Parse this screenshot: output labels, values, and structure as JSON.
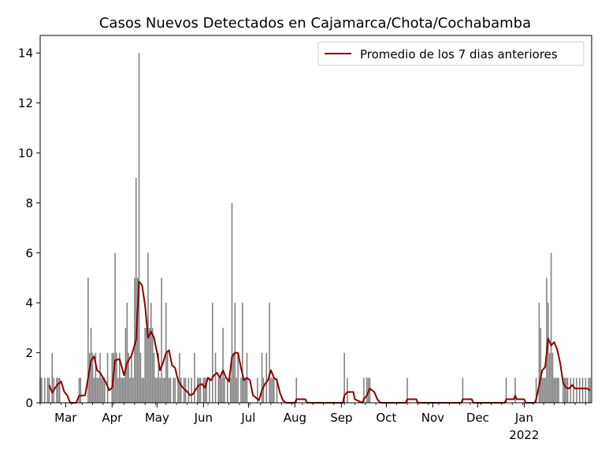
{
  "chart_data": {
    "type": "bar",
    "title": "Casos Nuevos Detectados en Cajamarca/Chota/Cochabamba",
    "xlabel": "",
    "ylabel": "",
    "ylim": [
      0,
      14.7
    ],
    "y_ticks": [
      0,
      2,
      4,
      6,
      8,
      10,
      12,
      14
    ],
    "x_range": [
      "2021-02-12",
      "2022-02-15"
    ],
    "x_ticks": [
      {
        "date": "2021-03-01",
        "label": "Mar",
        "sublabel": ""
      },
      {
        "date": "2021-04-01",
        "label": "Apr",
        "sublabel": ""
      },
      {
        "date": "2021-05-01",
        "label": "May",
        "sublabel": ""
      },
      {
        "date": "2021-06-01",
        "label": "Jun",
        "sublabel": ""
      },
      {
        "date": "2021-07-01",
        "label": "Jul",
        "sublabel": ""
      },
      {
        "date": "2021-08-01",
        "label": "Aug",
        "sublabel": ""
      },
      {
        "date": "2021-09-01",
        "label": "Sep",
        "sublabel": ""
      },
      {
        "date": "2021-10-01",
        "label": "Oct",
        "sublabel": ""
      },
      {
        "date": "2021-11-01",
        "label": "Nov",
        "sublabel": ""
      },
      {
        "date": "2021-12-01",
        "label": "Dec",
        "sublabel": ""
      },
      {
        "date": "2022-01-01",
        "label": "Jan",
        "sublabel": "2022"
      }
    ],
    "legend": {
      "label": "Promedio de los 7 dias anteriores",
      "placement": "top-right"
    },
    "bar_color": "#808080",
    "line_color": "#8b0000",
    "daily_cases": [
      [
        "2021-02-12",
        1
      ],
      [
        "2021-02-13",
        1
      ],
      [
        "2021-02-15",
        1
      ],
      [
        "2021-02-17",
        1
      ],
      [
        "2021-02-18",
        1
      ],
      [
        "2021-02-20",
        2
      ],
      [
        "2021-02-21",
        1
      ],
      [
        "2021-02-23",
        1
      ],
      [
        "2021-02-24",
        1
      ],
      [
        "2021-02-25",
        1
      ],
      [
        "2021-03-10",
        1
      ],
      [
        "2021-03-11",
        1
      ],
      [
        "2021-03-16",
        5
      ],
      [
        "2021-03-17",
        2
      ],
      [
        "2021-03-18",
        3
      ],
      [
        "2021-03-19",
        2
      ],
      [
        "2021-03-20",
        1
      ],
      [
        "2021-03-21",
        2
      ],
      [
        "2021-03-22",
        1
      ],
      [
        "2021-03-23",
        1
      ],
      [
        "2021-03-24",
        2
      ],
      [
        "2021-03-25",
        1
      ],
      [
        "2021-03-26",
        1
      ],
      [
        "2021-03-27",
        1
      ],
      [
        "2021-03-29",
        2
      ],
      [
        "2021-04-01",
        2
      ],
      [
        "2021-04-02",
        2
      ],
      [
        "2021-04-03",
        6
      ],
      [
        "2021-04-04",
        2
      ],
      [
        "2021-04-05",
        1
      ],
      [
        "2021-04-06",
        2
      ],
      [
        "2021-04-07",
        1
      ],
      [
        "2021-04-08",
        1
      ],
      [
        "2021-04-09",
        1
      ],
      [
        "2021-04-10",
        3
      ],
      [
        "2021-04-11",
        4
      ],
      [
        "2021-04-12",
        2
      ],
      [
        "2021-04-13",
        1
      ],
      [
        "2021-04-14",
        2
      ],
      [
        "2021-04-15",
        1
      ],
      [
        "2021-04-16",
        5
      ],
      [
        "2021-04-17",
        9
      ],
      [
        "2021-04-18",
        5
      ],
      [
        "2021-04-19",
        14
      ],
      [
        "2021-04-20",
        2
      ],
      [
        "2021-04-21",
        1
      ],
      [
        "2021-04-22",
        1
      ],
      [
        "2021-04-23",
        3
      ],
      [
        "2021-04-24",
        3
      ],
      [
        "2021-04-25",
        6
      ],
      [
        "2021-04-26",
        3
      ],
      [
        "2021-04-27",
        4
      ],
      [
        "2021-04-28",
        3
      ],
      [
        "2021-04-29",
        2
      ],
      [
        "2021-04-30",
        1
      ],
      [
        "2021-05-01",
        1
      ],
      [
        "2021-05-02",
        2
      ],
      [
        "2021-05-03",
        1
      ],
      [
        "2021-05-04",
        5
      ],
      [
        "2021-05-05",
        1
      ],
      [
        "2021-05-06",
        1
      ],
      [
        "2021-05-07",
        4
      ],
      [
        "2021-05-08",
        2
      ],
      [
        "2021-05-09",
        1
      ],
      [
        "2021-05-10",
        1
      ],
      [
        "2021-05-12",
        1
      ],
      [
        "2021-05-13",
        1
      ],
      [
        "2021-05-15",
        1
      ],
      [
        "2021-05-16",
        2
      ],
      [
        "2021-05-17",
        1
      ],
      [
        "2021-05-19",
        1
      ],
      [
        "2021-05-20",
        1
      ],
      [
        "2021-05-22",
        1
      ],
      [
        "2021-05-24",
        1
      ],
      [
        "2021-05-26",
        2
      ],
      [
        "2021-05-28",
        1
      ],
      [
        "2021-05-29",
        1
      ],
      [
        "2021-05-30",
        1
      ],
      [
        "2021-06-01",
        1
      ],
      [
        "2021-06-02",
        1
      ],
      [
        "2021-06-03",
        1
      ],
      [
        "2021-06-05",
        1
      ],
      [
        "2021-06-07",
        4
      ],
      [
        "2021-06-09",
        2
      ],
      [
        "2021-06-11",
        1
      ],
      [
        "2021-06-12",
        1
      ],
      [
        "2021-06-13",
        1
      ],
      [
        "2021-06-14",
        3
      ],
      [
        "2021-06-15",
        1
      ],
      [
        "2021-06-17",
        1
      ],
      [
        "2021-06-19",
        1
      ],
      [
        "2021-06-20",
        8
      ],
      [
        "2021-06-21",
        2
      ],
      [
        "2021-06-22",
        4
      ],
      [
        "2021-06-23",
        1
      ],
      [
        "2021-06-24",
        2
      ],
      [
        "2021-06-26",
        1
      ],
      [
        "2021-06-27",
        4
      ],
      [
        "2021-06-28",
        1
      ],
      [
        "2021-06-29",
        1
      ],
      [
        "2021-06-30",
        2
      ],
      [
        "2021-07-07",
        1
      ],
      [
        "2021-07-10",
        2
      ],
      [
        "2021-07-11",
        1
      ],
      [
        "2021-07-13",
        2
      ],
      [
        "2021-07-15",
        4
      ],
      [
        "2021-07-16",
        1
      ],
      [
        "2021-07-17",
        1
      ],
      [
        "2021-07-18",
        1
      ],
      [
        "2021-07-20",
        1
      ],
      [
        "2021-08-02",
        1
      ],
      [
        "2021-09-03",
        2
      ],
      [
        "2021-09-05",
        1
      ],
      [
        "2021-09-16",
        1
      ],
      [
        "2021-09-18",
        1
      ],
      [
        "2021-09-19",
        1
      ],
      [
        "2021-09-20",
        1
      ],
      [
        "2021-10-15",
        1
      ],
      [
        "2021-11-21",
        1
      ],
      [
        "2021-12-20",
        1
      ],
      [
        "2021-12-26",
        1
      ],
      [
        "2022-01-09",
        1
      ],
      [
        "2022-01-11",
        4
      ],
      [
        "2022-01-12",
        3
      ],
      [
        "2022-01-13",
        1
      ],
      [
        "2022-01-14",
        1
      ],
      [
        "2022-01-15",
        1
      ],
      [
        "2022-01-16",
        5
      ],
      [
        "2022-01-17",
        4
      ],
      [
        "2022-01-18",
        2
      ],
      [
        "2022-01-19",
        6
      ],
      [
        "2022-01-20",
        2
      ],
      [
        "2022-01-21",
        1
      ],
      [
        "2022-01-22",
        1
      ],
      [
        "2022-01-23",
        1
      ],
      [
        "2022-01-24",
        1
      ],
      [
        "2022-01-27",
        1
      ],
      [
        "2022-01-28",
        1
      ],
      [
        "2022-01-29",
        1
      ],
      [
        "2022-01-30",
        1
      ],
      [
        "2022-02-01",
        1
      ],
      [
        "2022-02-03",
        1
      ],
      [
        "2022-02-05",
        1
      ],
      [
        "2022-02-07",
        1
      ],
      [
        "2022-02-09",
        1
      ],
      [
        "2022-02-11",
        1
      ],
      [
        "2022-02-13",
        1
      ],
      [
        "2022-02-14",
        1
      ]
    ],
    "rolling_average": [
      [
        "2021-02-18",
        0.71
      ],
      [
        "2021-02-20",
        0.4
      ],
      [
        "2021-02-22",
        0.6
      ],
      [
        "2021-02-24",
        0.75
      ],
      [
        "2021-02-26",
        0.85
      ],
      [
        "2021-02-28",
        0.45
      ],
      [
        "2021-03-02",
        0.3
      ],
      [
        "2021-03-04",
        0.0
      ],
      [
        "2021-03-08",
        0.0
      ],
      [
        "2021-03-10",
        0.28
      ],
      [
        "2021-03-14",
        0.3
      ],
      [
        "2021-03-16",
        1.0
      ],
      [
        "2021-03-18",
        1.7
      ],
      [
        "2021-03-20",
        1.85
      ],
      [
        "2021-03-22",
        1.3
      ],
      [
        "2021-03-24",
        1.2
      ],
      [
        "2021-03-26",
        1.0
      ],
      [
        "2021-03-28",
        0.8
      ],
      [
        "2021-03-30",
        0.5
      ],
      [
        "2021-04-01",
        0.6
      ],
      [
        "2021-04-03",
        1.7
      ],
      [
        "2021-04-06",
        1.75
      ],
      [
        "2021-04-09",
        1.1
      ],
      [
        "2021-04-11",
        1.6
      ],
      [
        "2021-04-14",
        1.9
      ],
      [
        "2021-04-17",
        2.5
      ],
      [
        "2021-04-19",
        4.85
      ],
      [
        "2021-04-21",
        4.7
      ],
      [
        "2021-04-23",
        3.9
      ],
      [
        "2021-04-25",
        2.6
      ],
      [
        "2021-04-27",
        2.85
      ],
      [
        "2021-04-29",
        2.6
      ],
      [
        "2021-05-01",
        2.0
      ],
      [
        "2021-05-03",
        1.3
      ],
      [
        "2021-05-05",
        1.6
      ],
      [
        "2021-05-07",
        2.0
      ],
      [
        "2021-05-09",
        2.1
      ],
      [
        "2021-05-11",
        1.5
      ],
      [
        "2021-05-13",
        1.4
      ],
      [
        "2021-05-15",
        0.9
      ],
      [
        "2021-05-17",
        0.7
      ],
      [
        "2021-05-19",
        0.55
      ],
      [
        "2021-05-21",
        0.45
      ],
      [
        "2021-05-23",
        0.3
      ],
      [
        "2021-05-25",
        0.35
      ],
      [
        "2021-05-27",
        0.55
      ],
      [
        "2021-05-29",
        0.7
      ],
      [
        "2021-05-31",
        0.75
      ],
      [
        "2021-06-02",
        0.6
      ],
      [
        "2021-06-04",
        1.0
      ],
      [
        "2021-06-06",
        0.9
      ],
      [
        "2021-06-08",
        1.1
      ],
      [
        "2021-06-10",
        1.2
      ],
      [
        "2021-06-12",
        1.0
      ],
      [
        "2021-06-14",
        1.3
      ],
      [
        "2021-06-16",
        1.0
      ],
      [
        "2021-06-18",
        0.85
      ],
      [
        "2021-06-20",
        1.85
      ],
      [
        "2021-06-22",
        2.0
      ],
      [
        "2021-06-24",
        2.0
      ],
      [
        "2021-06-26",
        1.4
      ],
      [
        "2021-06-28",
        0.9
      ],
      [
        "2021-06-30",
        1.0
      ],
      [
        "2021-07-02",
        0.9
      ],
      [
        "2021-07-04",
        0.3
      ],
      [
        "2021-07-06",
        0.2
      ],
      [
        "2021-07-08",
        0.1
      ],
      [
        "2021-07-10",
        0.5
      ],
      [
        "2021-07-12",
        0.75
      ],
      [
        "2021-07-14",
        0.9
      ],
      [
        "2021-07-16",
        1.3
      ],
      [
        "2021-07-18",
        1.0
      ],
      [
        "2021-07-20",
        0.9
      ],
      [
        "2021-07-22",
        0.4
      ],
      [
        "2021-07-24",
        0.1
      ],
      [
        "2021-07-26",
        0.0
      ],
      [
        "2021-08-01",
        0.0
      ],
      [
        "2021-08-02",
        0.14
      ],
      [
        "2021-08-08",
        0.14
      ],
      [
        "2021-08-09",
        0.0
      ],
      [
        "2021-09-02",
        0.0
      ],
      [
        "2021-09-03",
        0.29
      ],
      [
        "2021-09-05",
        0.43
      ],
      [
        "2021-09-09",
        0.43
      ],
      [
        "2021-09-10",
        0.14
      ],
      [
        "2021-09-15",
        0.0
      ],
      [
        "2021-09-16",
        0.14
      ],
      [
        "2021-09-18",
        0.29
      ],
      [
        "2021-09-20",
        0.57
      ],
      [
        "2021-09-23",
        0.43
      ],
      [
        "2021-09-25",
        0.14
      ],
      [
        "2021-09-27",
        0.0
      ],
      [
        "2021-10-14",
        0.0
      ],
      [
        "2021-10-15",
        0.14
      ],
      [
        "2021-10-21",
        0.14
      ],
      [
        "2021-10-22",
        0.0
      ],
      [
        "2021-11-20",
        0.0
      ],
      [
        "2021-11-21",
        0.14
      ],
      [
        "2021-11-27",
        0.14
      ],
      [
        "2021-11-28",
        0.0
      ],
      [
        "2021-12-19",
        0.0
      ],
      [
        "2021-12-20",
        0.14
      ],
      [
        "2021-12-25",
        0.14
      ],
      [
        "2021-12-26",
        0.29
      ],
      [
        "2021-12-27",
        0.14
      ],
      [
        "2022-01-01",
        0.14
      ],
      [
        "2022-01-02",
        0.0
      ],
      [
        "2022-01-08",
        0.0
      ],
      [
        "2022-01-09",
        0.14
      ],
      [
        "2022-01-11",
        0.71
      ],
      [
        "2022-01-13",
        1.29
      ],
      [
        "2022-01-15",
        1.43
      ],
      [
        "2022-01-17",
        2.57
      ],
      [
        "2022-01-19",
        2.29
      ],
      [
        "2022-01-21",
        2.43
      ],
      [
        "2022-01-23",
        2.14
      ],
      [
        "2022-01-25",
        1.6
      ],
      [
        "2022-01-27",
        0.8
      ],
      [
        "2022-01-29",
        0.6
      ],
      [
        "2022-01-31",
        0.57
      ],
      [
        "2022-02-02",
        0.71
      ],
      [
        "2022-02-04",
        0.57
      ],
      [
        "2022-02-06",
        0.57
      ],
      [
        "2022-02-08",
        0.57
      ],
      [
        "2022-02-10",
        0.57
      ],
      [
        "2022-02-12",
        0.57
      ],
      [
        "2022-02-14",
        0.5
      ]
    ]
  }
}
